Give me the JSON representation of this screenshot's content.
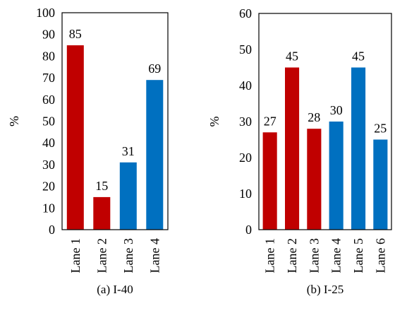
{
  "chart_data": [
    {
      "type": "bar",
      "caption": "(a) I-40",
      "ylabel": "%",
      "ylim": [
        0,
        100
      ],
      "yticks": [
        0,
        10,
        20,
        30,
        40,
        50,
        60,
        70,
        80,
        90,
        100
      ],
      "categories": [
        "Lane 1",
        "Lane 2",
        "Lane 3",
        "Lane 4"
      ],
      "values": [
        85,
        15,
        31,
        69
      ],
      "data_labels": [
        "85",
        "15",
        "31",
        "69"
      ],
      "bar_colors": [
        "#C00000",
        "#C00000",
        "#0070C0",
        "#0070C0"
      ],
      "grid": false
    },
    {
      "type": "bar",
      "caption": "(b) I-25",
      "ylabel": "%",
      "ylim": [
        0,
        60
      ],
      "yticks": [
        0,
        10,
        20,
        30,
        40,
        50,
        60
      ],
      "categories": [
        "Lane 1",
        "Lane 2",
        "Lane 3",
        "Lane 4",
        "Lane 5",
        "Lane 6"
      ],
      "values": [
        27,
        45,
        28,
        30,
        45,
        25
      ],
      "data_labels": [
        "27",
        "45",
        "28",
        "30",
        "45",
        "25"
      ],
      "bar_colors": [
        "#C00000",
        "#C00000",
        "#C00000",
        "#0070C0",
        "#0070C0",
        "#0070C0"
      ],
      "grid": false
    }
  ]
}
